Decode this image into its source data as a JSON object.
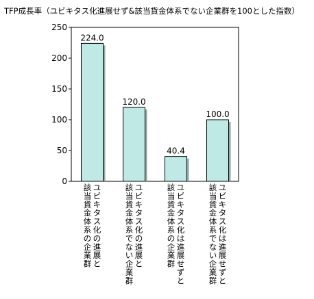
{
  "chart_data": {
    "type": "bar",
    "title": "TFP成長率（ユビキタス化進展せず&該当貨金体系でない企業群を100とした指数）",
    "xlabel": "",
    "ylabel": "",
    "ylim": [
      0,
      250
    ],
    "yticks": [
      0,
      50,
      100,
      150,
      200,
      250
    ],
    "grid": false,
    "categories": [
      "ユビキタス化の進展と該当貨金体系の企業群",
      "ユビキタス化の進展と該当貨金体系でない企業群",
      "ユビキタス化は進展せずと該当貨金体系の企業群",
      "ユビキタス化は進展せずと該当貨金体系でない企業群"
    ],
    "values": [
      224.0,
      120.0,
      40.4,
      100.0
    ],
    "value_labels": [
      "224.0",
      "120.0",
      "40.4",
      "100.0"
    ],
    "colors": {
      "bar_fill": "#bfe9e5",
      "bar_edge": "#000000",
      "background": "#ffffff"
    }
  }
}
